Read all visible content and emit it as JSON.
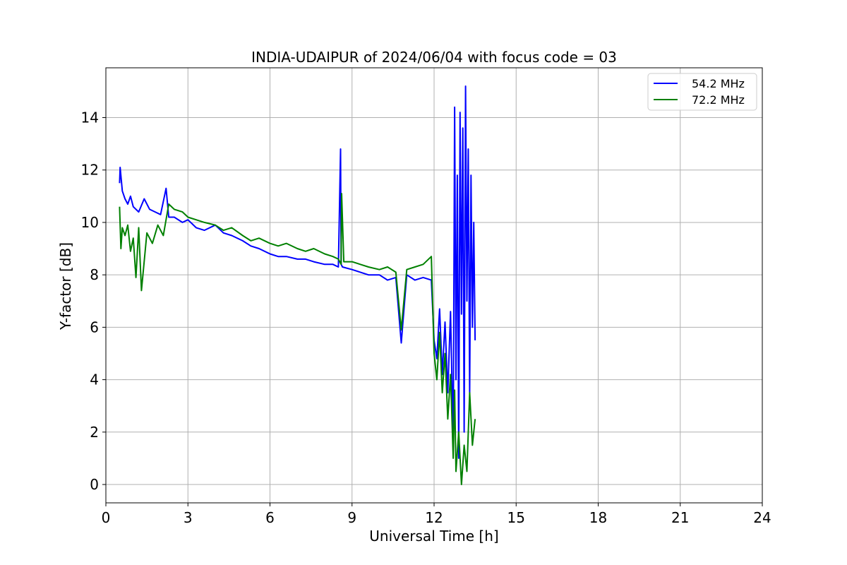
{
  "chart_data": {
    "type": "line",
    "title": "INDIA-UDAIPUR of 2024/06/04 with focus code = 03",
    "xlabel": "Universal Time [h]",
    "ylabel": "Y-factor [dB]",
    "xlim": [
      0,
      24
    ],
    "ylim": [
      -0.7,
      15.9
    ],
    "xticks": [
      0,
      3,
      6,
      9,
      12,
      15,
      18,
      21,
      24
    ],
    "yticks": [
      0,
      2,
      4,
      6,
      8,
      10,
      12,
      14
    ],
    "grid": true,
    "legend_position": "top-right",
    "series": [
      {
        "name": "54.2 MHz",
        "color": "#0000ff",
        "x": [
          0.5,
          0.52,
          0.6,
          0.7,
          0.8,
          0.9,
          1.0,
          1.2,
          1.4,
          1.6,
          1.8,
          2.0,
          2.2,
          2.3,
          2.5,
          2.8,
          3.0,
          3.3,
          3.6,
          4.0,
          4.3,
          4.6,
          5.0,
          5.3,
          5.6,
          6.0,
          6.3,
          6.6,
          7.0,
          7.3,
          7.6,
          8.0,
          8.3,
          8.5,
          8.58,
          8.6,
          8.65,
          9.0,
          9.3,
          9.6,
          10.0,
          10.3,
          10.6,
          10.8,
          11.0,
          11.3,
          11.6,
          11.9,
          12.0,
          12.1,
          12.2,
          12.3,
          12.4,
          12.5,
          12.6,
          12.7,
          12.75,
          12.8,
          12.85,
          12.9,
          12.95,
          13.0,
          13.05,
          13.1,
          13.15,
          13.2,
          13.25,
          13.3,
          13.35,
          13.4,
          13.45,
          13.5
        ],
        "values": [
          11.5,
          12.1,
          11.2,
          10.9,
          10.7,
          11.0,
          10.6,
          10.4,
          10.9,
          10.5,
          10.4,
          10.3,
          11.3,
          10.2,
          10.2,
          10.0,
          10.1,
          9.8,
          9.7,
          9.9,
          9.6,
          9.5,
          9.3,
          9.1,
          9.0,
          8.8,
          8.7,
          8.7,
          8.6,
          8.6,
          8.5,
          8.4,
          8.4,
          8.3,
          12.8,
          8.4,
          8.3,
          8.2,
          8.1,
          8.0,
          8.0,
          7.8,
          7.9,
          5.4,
          8.0,
          7.8,
          7.9,
          7.8,
          5.5,
          4.8,
          6.7,
          4.2,
          6.2,
          3.5,
          6.6,
          1.5,
          14.4,
          4.0,
          11.8,
          1.0,
          14.2,
          6.5,
          13.6,
          2.0,
          15.2,
          7.0,
          12.8,
          3.5,
          11.8,
          6.0,
          10.0,
          5.5
        ]
      },
      {
        "name": "72.2 MHz",
        "color": "#008000",
        "x": [
          0.5,
          0.55,
          0.6,
          0.7,
          0.8,
          0.9,
          1.0,
          1.1,
          1.2,
          1.3,
          1.5,
          1.7,
          1.9,
          2.1,
          2.3,
          2.5,
          2.8,
          3.0,
          3.3,
          3.6,
          4.0,
          4.3,
          4.6,
          5.0,
          5.3,
          5.6,
          6.0,
          6.3,
          6.6,
          7.0,
          7.3,
          7.6,
          8.0,
          8.3,
          8.5,
          8.6,
          8.62,
          8.7,
          9.0,
          9.3,
          9.6,
          10.0,
          10.3,
          10.6,
          10.8,
          11.0,
          11.3,
          11.6,
          11.9,
          12.0,
          12.1,
          12.2,
          12.3,
          12.4,
          12.5,
          12.6,
          12.7,
          12.75,
          12.8,
          12.9,
          13.0,
          13.1,
          13.2,
          13.3,
          13.4,
          13.5
        ],
        "values": [
          10.6,
          9.0,
          9.8,
          9.5,
          9.9,
          8.9,
          9.4,
          7.9,
          9.8,
          7.4,
          9.6,
          9.2,
          9.9,
          9.5,
          10.7,
          10.5,
          10.4,
          10.2,
          10.1,
          10.0,
          9.9,
          9.7,
          9.8,
          9.5,
          9.3,
          9.4,
          9.2,
          9.1,
          9.2,
          9.0,
          8.9,
          9.0,
          8.8,
          8.7,
          8.6,
          8.4,
          11.1,
          8.5,
          8.5,
          8.4,
          8.3,
          8.2,
          8.3,
          8.1,
          5.9,
          8.2,
          8.3,
          8.4,
          8.7,
          5.0,
          4.0,
          5.8,
          3.5,
          5.0,
          2.5,
          4.2,
          1.0,
          3.6,
          0.5,
          2.0,
          0.0,
          1.5,
          0.5,
          3.5,
          1.5,
          2.5
        ]
      }
    ]
  }
}
